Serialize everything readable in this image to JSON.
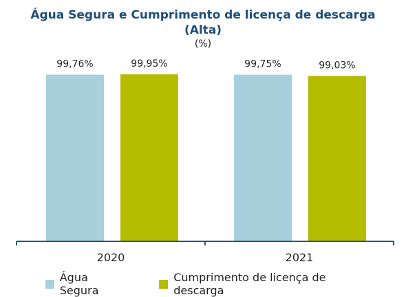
{
  "chart_data": {
    "type": "bar",
    "title": "Água  Segura e Cumprimento de licença de descarga",
    "subtitle": "(Alta)",
    "unit": "(%)",
    "categories": [
      "2020",
      "2021"
    ],
    "series": [
      {
        "name": "Água Segura",
        "values": [
          99.76,
          99.75
        ],
        "labels": [
          "99,76%",
          "99,75%"
        ],
        "color": "#a8cfdc"
      },
      {
        "name": "Cumprimento de licença de descarga",
        "values": [
          99.95,
          99.03
        ],
        "labels": [
          "99,95%",
          "99,03%"
        ],
        "color": "#b5bd00"
      }
    ],
    "axis_color": "#1f5a7a",
    "legend_position": "bottom"
  }
}
